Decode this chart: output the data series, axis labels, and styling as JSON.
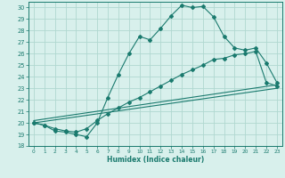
{
  "title": "",
  "xlabel": "Humidex (Indice chaleur)",
  "ylabel": "",
  "xlim": [
    -0.5,
    23.5
  ],
  "ylim": [
    18,
    30.5
  ],
  "yticks": [
    18,
    19,
    20,
    21,
    22,
    23,
    24,
    25,
    26,
    27,
    28,
    29,
    30
  ],
  "xticks": [
    0,
    1,
    2,
    3,
    4,
    5,
    6,
    7,
    8,
    9,
    10,
    11,
    12,
    13,
    14,
    15,
    16,
    17,
    18,
    19,
    20,
    21,
    22,
    23
  ],
  "bg_color": "#d8f0ec",
  "grid_color": "#b0d8d0",
  "line_color": "#1a7a6e",
  "line1_x": [
    0,
    1,
    2,
    3,
    4,
    5,
    6,
    7,
    8,
    9,
    10,
    11,
    12,
    13,
    14,
    15,
    16,
    17,
    18,
    19,
    20,
    21,
    22,
    23
  ],
  "line1_y": [
    20.0,
    19.8,
    19.3,
    19.2,
    19.0,
    18.8,
    20.0,
    22.2,
    24.2,
    26.0,
    27.5,
    27.2,
    28.2,
    29.3,
    30.2,
    30.0,
    30.1,
    29.2,
    27.5,
    26.5,
    26.3,
    26.5,
    25.2,
    23.5
  ],
  "line2_x": [
    0,
    1,
    2,
    3,
    4,
    5,
    6,
    7,
    8,
    9,
    10,
    11,
    12,
    13,
    14,
    15,
    16,
    17,
    18,
    19,
    20,
    21,
    22,
    23
  ],
  "line2_y": [
    20.0,
    19.8,
    19.5,
    19.3,
    19.2,
    19.5,
    20.2,
    20.8,
    21.3,
    21.8,
    22.2,
    22.7,
    23.2,
    23.7,
    24.2,
    24.6,
    25.0,
    25.5,
    25.6,
    25.9,
    26.0,
    26.2,
    23.5,
    23.2
  ],
  "line3_x": [
    0,
    23
  ],
  "line3_y": [
    20.0,
    23.0
  ],
  "line4_x": [
    0,
    23
  ],
  "line4_y": [
    20.2,
    23.3
  ]
}
